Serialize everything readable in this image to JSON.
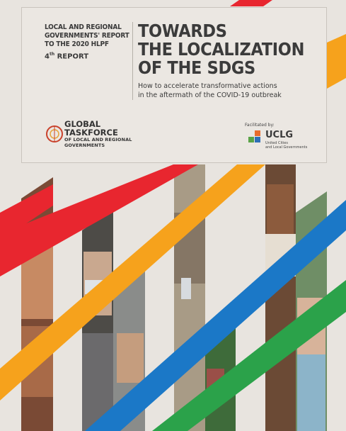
{
  "report": {
    "kicker": "LOCAL AND REGIONAL GOVERNMENTS' REPORT TO THE 2020 HLPF",
    "edition_number": "4",
    "edition_suffix": "th",
    "edition_label": " REPORT",
    "title_line1": "TOWARDS",
    "title_line2": "THE LOCALIZATION",
    "title_line3": "OF THE SDGs",
    "subtitle_line1": "How to accelerate transformative actions",
    "subtitle_line2": "in the aftermath of the COVID-19 outbreak"
  },
  "gtf": {
    "line1": "GLOBAL",
    "line2": "TASKFORCE",
    "line3": "OF LOCAL AND REGIONAL",
    "line4": "GOVERNMENTS"
  },
  "facilitator": {
    "label": "Facilitated by:",
    "name": "UCLG",
    "sub_line1": "United Cities",
    "sub_line2": "and Local Governments"
  },
  "colors": {
    "red": "#e8262f",
    "orange": "#f6a21c",
    "blue": "#1b78c7",
    "green": "#2ba24a",
    "background": "#e8e4df"
  }
}
